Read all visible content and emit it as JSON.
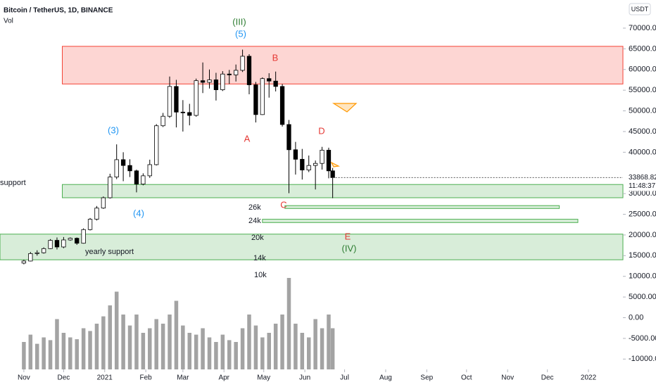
{
  "chart_data": {
    "type": "candlestick",
    "title": "Bitcoin / TetherUS, 1D, BINANCE",
    "volume_label": "Vol",
    "currency": "USDT",
    "x": [
      "2020-11-01",
      "2020-11-06",
      "2020-11-11",
      "2020-11-16",
      "2020-11-21",
      "2020-11-26",
      "2020-12-01",
      "2020-12-06",
      "2020-12-11",
      "2020-12-16",
      "2020-12-21",
      "2020-12-26",
      "2020-12-31",
      "2021-01-05",
      "2021-01-10",
      "2021-01-15",
      "2021-01-20",
      "2021-01-25",
      "2021-01-30",
      "2021-02-04",
      "2021-02-09",
      "2021-02-14",
      "2021-02-19",
      "2021-02-24",
      "2021-03-01",
      "2021-03-06",
      "2021-03-11",
      "2021-03-16",
      "2021-03-21",
      "2021-03-26",
      "2021-03-31",
      "2021-04-05",
      "2021-04-10",
      "2021-04-15",
      "2021-04-20",
      "2021-04-25",
      "2021-04-30",
      "2021-05-05",
      "2021-05-10",
      "2021-05-15",
      "2021-05-20",
      "2021-05-25",
      "2021-05-30",
      "2021-06-04",
      "2021-06-09",
      "2021-06-14",
      "2021-06-19",
      "2021-06-22"
    ],
    "open": [
      13200,
      13700,
      15500,
      15700,
      16700,
      18700,
      17100,
      18800,
      19200,
      18000,
      21300,
      23800,
      26500,
      29000,
      34000,
      38200,
      36800,
      35500,
      32300,
      34300,
      37000,
      46400,
      48700,
      55900,
      49700,
      49600,
      48900,
      57300,
      56900,
      57500,
      55100,
      58900,
      58700,
      59800,
      63200,
      56300,
      49100,
      57800,
      57200,
      55900,
      46700,
      40600,
      38300,
      35700,
      36800,
      37300,
      40500,
      35500
    ],
    "high": [
      14000,
      15900,
      16300,
      17000,
      19000,
      19400,
      19500,
      19400,
      19400,
      21600,
      24100,
      27000,
      29300,
      34800,
      41900,
      40000,
      38300,
      35800,
      34900,
      38200,
      46800,
      49500,
      58300,
      57500,
      52600,
      51700,
      57800,
      61700,
      60000,
      59200,
      59600,
      59900,
      61200,
      64800,
      63700,
      57000,
      58100,
      59100,
      59500,
      56500,
      47800,
      42500,
      40800,
      39200,
      38000,
      41300,
      41100,
      36200
    ],
    "low": [
      12900,
      13600,
      15000,
      15500,
      16600,
      16500,
      16800,
      18600,
      17600,
      17900,
      21100,
      23500,
      26300,
      28800,
      33500,
      33000,
      34000,
      30300,
      32000,
      33800,
      36800,
      46100,
      48300,
      46000,
      45000,
      46500,
      48600,
      54300,
      55400,
      52500,
      54800,
      56500,
      57100,
      59400,
      54000,
      47200,
      49000,
      53200,
      54700,
      46200,
      30100,
      34600,
      33400,
      35200,
      31000,
      35800,
      33700,
      28900
    ],
    "close": [
      13700,
      15500,
      15700,
      16700,
      18700,
      17100,
      18800,
      19200,
      18000,
      21300,
      23800,
      26500,
      29000,
      34000,
      38200,
      36800,
      35500,
      32300,
      34300,
      37000,
      46400,
      48700,
      55900,
      49700,
      49600,
      48900,
      57300,
      56900,
      57500,
      55100,
      58900,
      58700,
      59800,
      63200,
      56300,
      49100,
      57800,
      57200,
      55900,
      46700,
      40600,
      38300,
      35700,
      36800,
      37300,
      40500,
      35500,
      33868.82
    ],
    "volume": [
      30,
      38,
      28,
      35,
      32,
      55,
      40,
      35,
      33,
      45,
      42,
      50,
      58,
      70,
      85,
      60,
      48,
      60,
      40,
      45,
      55,
      50,
      60,
      75,
      48,
      40,
      38,
      45,
      35,
      30,
      38,
      32,
      30,
      45,
      60,
      48,
      35,
      40,
      50,
      60,
      100,
      50,
      40,
      35,
      55,
      45,
      60,
      45
    ],
    "volume_lim": [
      0,
      100
    ],
    "up_color": "#ffffff",
    "down_color": "#000000",
    "volume_color": "#a3a3a3",
    "xlim": [
      "2020-10-14",
      "2022-01-27"
    ],
    "xticks": [
      {
        "value": "2020-11-01",
        "label": "Nov"
      },
      {
        "value": "2020-12-01",
        "label": "Dec"
      },
      {
        "value": "2021-01-01",
        "label": "2021"
      },
      {
        "value": "2021-02-01",
        "label": "Feb"
      },
      {
        "value": "2021-03-01",
        "label": "Mar"
      },
      {
        "value": "2021-04-01",
        "label": "Apr"
      },
      {
        "value": "2021-05-01",
        "label": "May"
      },
      {
        "value": "2021-06-01",
        "label": "Jun"
      },
      {
        "value": "2021-07-01",
        "label": "Jul"
      },
      {
        "value": "2021-08-01",
        "label": "Aug"
      },
      {
        "value": "2021-09-01",
        "label": "Sep"
      },
      {
        "value": "2021-10-01",
        "label": "Oct"
      },
      {
        "value": "2021-11-01",
        "label": "Nov"
      },
      {
        "value": "2021-12-01",
        "label": "Dec"
      },
      {
        "value": "2022-01-01",
        "label": "2022"
      }
    ],
    "ylim": [
      -12500,
      76800
    ],
    "yticks": [
      {
        "value": 70000,
        "label": "70000.00"
      },
      {
        "value": 65000,
        "label": "65000.00"
      },
      {
        "value": 60000,
        "label": "60000.00"
      },
      {
        "value": 55000,
        "label": "55000.00"
      },
      {
        "value": 50000,
        "label": "50000.00"
      },
      {
        "value": 45000,
        "label": "45000.00"
      },
      {
        "value": 40000,
        "label": "40000.00"
      },
      {
        "value": 30000,
        "label": "30000.00"
      },
      {
        "value": 25000,
        "label": "25000.00"
      },
      {
        "value": 20000,
        "label": "20000.00"
      },
      {
        "value": 15000,
        "label": "15000.00"
      },
      {
        "value": 10000,
        "label": "10000.00"
      },
      {
        "value": 5000,
        "label": "5000.00"
      },
      {
        "value": 0,
        "label": "0.00"
      },
      {
        "value": -5000,
        "label": "-5000.00"
      },
      {
        "value": -10000,
        "label": "-10000.00"
      }
    ],
    "last_price": {
      "value": 33868.82,
      "label": "33868.82"
    },
    "countdown": "11:48:37",
    "zones": [
      {
        "low": 56500,
        "high": 65600,
        "start": "2020-11-30",
        "end": "2022-01-27",
        "color": "#f44336"
      },
      {
        "low": 29000,
        "high": 32200,
        "start": "2020-11-30",
        "end": "2022-01-27",
        "color": "#4caf50"
      },
      {
        "low": 14000,
        "high": 20200,
        "start": "2020-10-14",
        "end": "2022-01-27",
        "color": "#4caf50"
      },
      {
        "low": 26400,
        "high": 27100,
        "start": "2021-05-17",
        "end": "2021-12-10",
        "color": "#4caf50"
      },
      {
        "low": 23000,
        "high": 23800,
        "start": "2021-04-30",
        "end": "2021-12-24",
        "color": "#4caf50"
      }
    ],
    "annotations": [
      "(III)",
      "(5)",
      "B",
      "A",
      "D",
      "(3)",
      "(4)",
      "C",
      "E",
      "(IV)",
      "support",
      "yearly support",
      "26k",
      "24k",
      "20k",
      "14k",
      "10k"
    ]
  }
}
